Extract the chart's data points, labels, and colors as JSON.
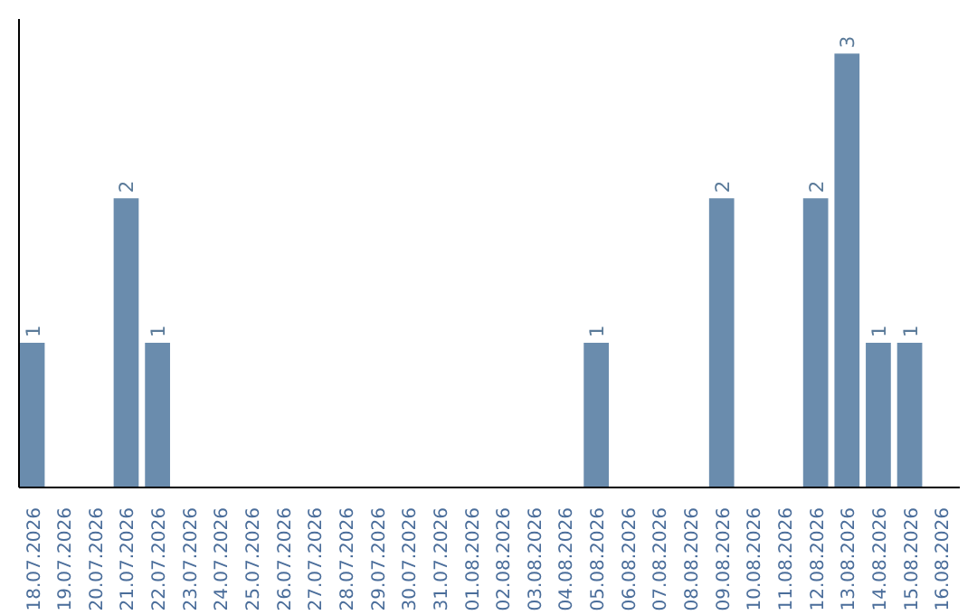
{
  "chart_data": {
    "type": "bar",
    "categories": [
      "18.07.2026",
      "19.07.2026",
      "20.07.2026",
      "21.07.2026",
      "22.07.2026",
      "23.07.2026",
      "24.07.2026",
      "25.07.2026",
      "26.07.2026",
      "27.07.2026",
      "28.07.2026",
      "29.07.2026",
      "30.07.2026",
      "31.07.2026",
      "01.08.2026",
      "02.08.2026",
      "03.08.2026",
      "04.08.2026",
      "05.08.2026",
      "06.08.2026",
      "07.08.2026",
      "08.08.2026",
      "09.08.2026",
      "10.08.2026",
      "11.08.2026",
      "12.08.2026",
      "13.08.2026",
      "14.08.2026",
      "15.08.2026",
      "16.08.2026"
    ],
    "values": [
      1,
      0,
      0,
      2,
      1,
      0,
      0,
      0,
      0,
      0,
      0,
      0,
      0,
      0,
      0,
      0,
      0,
      0,
      1,
      0,
      0,
      0,
      2,
      0,
      0,
      2,
      3,
      1,
      1,
      0
    ],
    "value_labels": [
      "1",
      null,
      null,
      "2",
      "1",
      null,
      null,
      null,
      null,
      null,
      null,
      null,
      null,
      null,
      null,
      null,
      null,
      null,
      "1",
      null,
      null,
      null,
      "2",
      null,
      null,
      "2",
      "3",
      "1",
      "1",
      null
    ],
    "color": "#6a8cad",
    "tick_labels": "x",
    "grid": false
  }
}
